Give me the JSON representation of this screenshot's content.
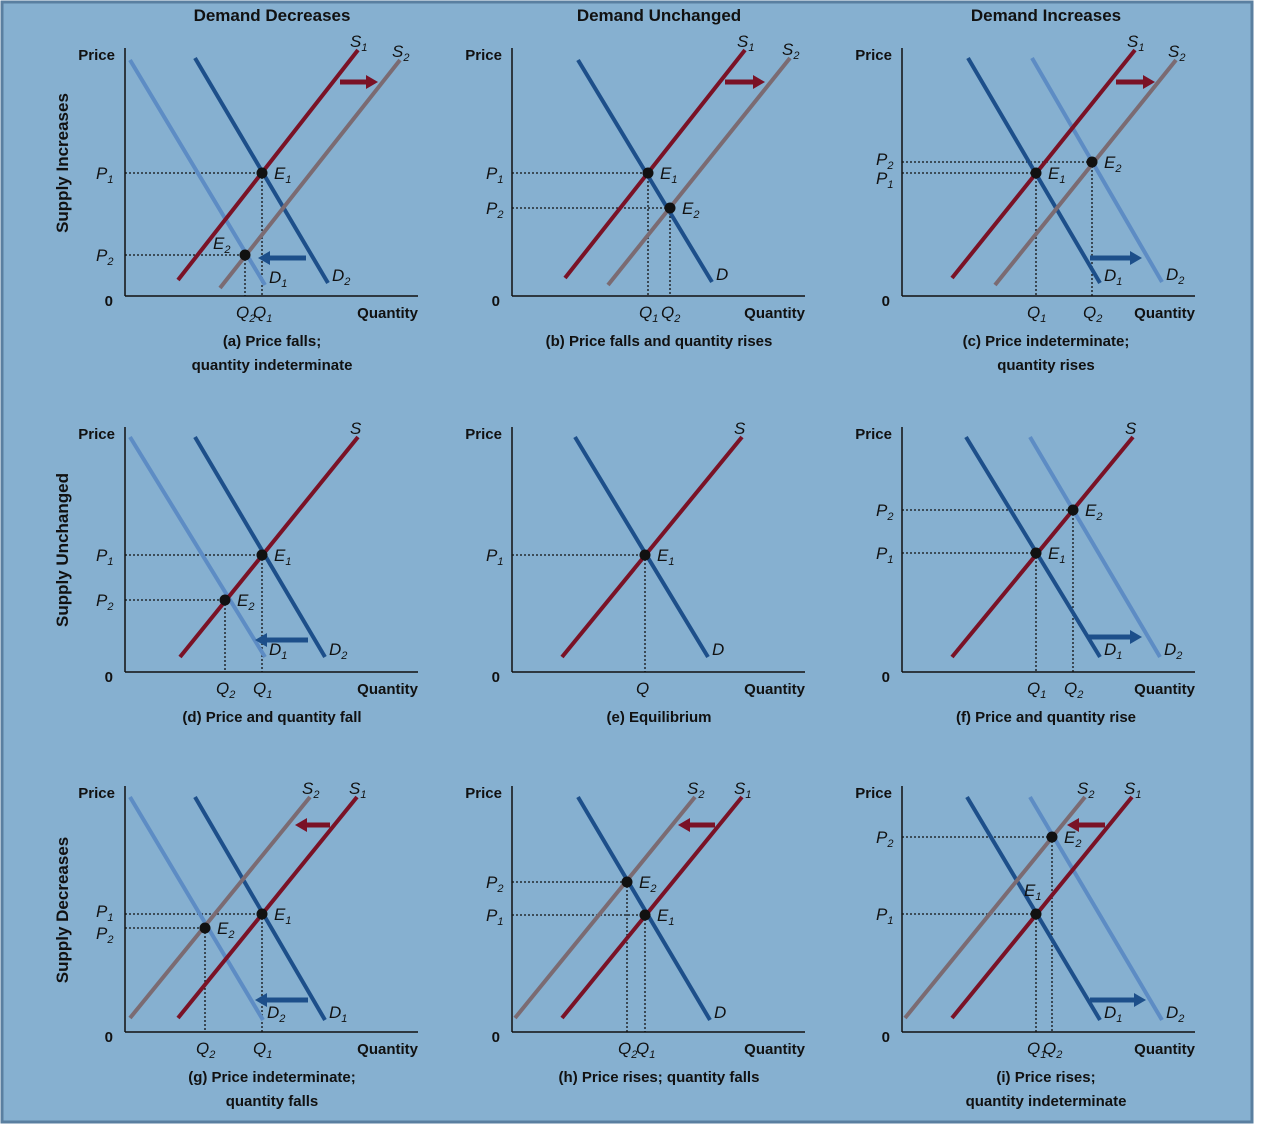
{
  "colors": {
    "background": "#86b0d0",
    "border": "#5a7fa0",
    "s1": "#7a1226",
    "s2": "#7b6b72",
    "d1": "#1d4f8a",
    "d2": "#5d8cc4",
    "arrow_supply": "#7a1226",
    "arrow_demand": "#1d4f8a"
  },
  "column_headers": [
    "Demand Decreases",
    "Demand Unchanged",
    "Demand Increases"
  ],
  "row_labels": [
    "Supply Increases",
    "Supply Unchanged",
    "Supply Decreases"
  ],
  "axis": {
    "price": "Price",
    "quantity": "Quantity",
    "origin": "0"
  },
  "panels": [
    {
      "id": "a",
      "caption": [
        "(a) Price falls;",
        "quantity indeterminate"
      ],
      "supply_labels": [
        {
          "base": "S",
          "sub": "1"
        },
        {
          "base": "S",
          "sub": "2"
        }
      ],
      "demand_labels": [
        {
          "base": "D",
          "sub": "1"
        },
        {
          "base": "D",
          "sub": "2"
        }
      ],
      "price_labels": [
        {
          "base": "P",
          "sub": "1"
        },
        {
          "base": "P",
          "sub": "2"
        }
      ],
      "quantity_labels": [
        {
          "base": "Q",
          "sub": "2"
        },
        {
          "base": "Q",
          "sub": "1"
        }
      ],
      "equilibria": [
        {
          "base": "E",
          "sub": "1"
        },
        {
          "base": "E",
          "sub": "2"
        }
      ]
    },
    {
      "id": "b",
      "caption": [
        "(b) Price falls and quantity rises"
      ],
      "supply_labels": [
        {
          "base": "S",
          "sub": "1"
        },
        {
          "base": "S",
          "sub": "2"
        }
      ],
      "demand_labels": [
        {
          "base": "D",
          "sub": ""
        }
      ],
      "price_labels": [
        {
          "base": "P",
          "sub": "1"
        },
        {
          "base": "P",
          "sub": "2"
        }
      ],
      "quantity_labels": [
        {
          "base": "Q",
          "sub": "1"
        },
        {
          "base": "Q",
          "sub": "2"
        }
      ],
      "equilibria": [
        {
          "base": "E",
          "sub": "1"
        },
        {
          "base": "E",
          "sub": "2"
        }
      ]
    },
    {
      "id": "c",
      "caption": [
        "(c) Price indeterminate;",
        "quantity rises"
      ],
      "supply_labels": [
        {
          "base": "S",
          "sub": "1"
        },
        {
          "base": "S",
          "sub": "2"
        }
      ],
      "demand_labels": [
        {
          "base": "D",
          "sub": "1"
        },
        {
          "base": "D",
          "sub": "2"
        }
      ],
      "price_labels": [
        {
          "base": "P",
          "sub": "2"
        },
        {
          "base": "P",
          "sub": "1"
        }
      ],
      "quantity_labels": [
        {
          "base": "Q",
          "sub": "1"
        },
        {
          "base": "Q",
          "sub": "2"
        }
      ],
      "equilibria": [
        {
          "base": "E",
          "sub": "1"
        },
        {
          "base": "E",
          "sub": "2"
        }
      ]
    },
    {
      "id": "d",
      "caption": [
        "(d) Price and quantity fall"
      ],
      "supply_labels": [
        {
          "base": "S",
          "sub": ""
        }
      ],
      "demand_labels": [
        {
          "base": "D",
          "sub": "1"
        },
        {
          "base": "D",
          "sub": "2"
        }
      ],
      "price_labels": [
        {
          "base": "P",
          "sub": "1"
        },
        {
          "base": "P",
          "sub": "2"
        }
      ],
      "quantity_labels": [
        {
          "base": "Q",
          "sub": "2"
        },
        {
          "base": "Q",
          "sub": "1"
        }
      ],
      "equilibria": [
        {
          "base": "E",
          "sub": "1"
        },
        {
          "base": "E",
          "sub": "2"
        }
      ]
    },
    {
      "id": "e",
      "caption": [
        "(e) Equilibrium"
      ],
      "supply_labels": [
        {
          "base": "S",
          "sub": ""
        }
      ],
      "demand_labels": [
        {
          "base": "D",
          "sub": ""
        }
      ],
      "price_labels": [
        {
          "base": "P",
          "sub": "1"
        }
      ],
      "quantity_labels": [
        {
          "base": "Q",
          "sub": ""
        }
      ],
      "equilibria": [
        {
          "base": "E",
          "sub": "1"
        }
      ]
    },
    {
      "id": "f",
      "caption": [
        "(f) Price and quantity rise"
      ],
      "supply_labels": [
        {
          "base": "S",
          "sub": ""
        }
      ],
      "demand_labels": [
        {
          "base": "D",
          "sub": "1"
        },
        {
          "base": "D",
          "sub": "2"
        }
      ],
      "price_labels": [
        {
          "base": "P",
          "sub": "2"
        },
        {
          "base": "P",
          "sub": "1"
        }
      ],
      "quantity_labels": [
        {
          "base": "Q",
          "sub": "1"
        },
        {
          "base": "Q",
          "sub": "2"
        }
      ],
      "equilibria": [
        {
          "base": "E",
          "sub": "1"
        },
        {
          "base": "E",
          "sub": "2"
        }
      ]
    },
    {
      "id": "g",
      "caption": [
        "(g) Price indeterminate;",
        "quantity falls"
      ],
      "supply_labels": [
        {
          "base": "S",
          "sub": "2"
        },
        {
          "base": "S",
          "sub": "1"
        }
      ],
      "demand_labels": [
        {
          "base": "D",
          "sub": "2"
        },
        {
          "base": "D",
          "sub": "1"
        }
      ],
      "price_labels": [
        {
          "base": "P",
          "sub": "1"
        },
        {
          "base": "P",
          "sub": "2"
        }
      ],
      "quantity_labels": [
        {
          "base": "Q",
          "sub": "2"
        },
        {
          "base": "Q",
          "sub": "1"
        }
      ],
      "equilibria": [
        {
          "base": "E",
          "sub": "1"
        },
        {
          "base": "E",
          "sub": "2"
        }
      ]
    },
    {
      "id": "h",
      "caption": [
        "(h) Price rises; quantity falls"
      ],
      "supply_labels": [
        {
          "base": "S",
          "sub": "2"
        },
        {
          "base": "S",
          "sub": "1"
        }
      ],
      "demand_labels": [
        {
          "base": "D",
          "sub": ""
        }
      ],
      "price_labels": [
        {
          "base": "P",
          "sub": "2"
        },
        {
          "base": "P",
          "sub": "1"
        }
      ],
      "quantity_labels": [
        {
          "base": "Q",
          "sub": "2"
        },
        {
          "base": "Q",
          "sub": "1"
        }
      ],
      "equilibria": [
        {
          "base": "E",
          "sub": "2"
        },
        {
          "base": "E",
          "sub": "1"
        }
      ]
    },
    {
      "id": "i",
      "caption": [
        "(i) Price rises;",
        "quantity indeterminate"
      ],
      "supply_labels": [
        {
          "base": "S",
          "sub": "2"
        },
        {
          "base": "S",
          "sub": "1"
        }
      ],
      "demand_labels": [
        {
          "base": "D",
          "sub": "1"
        },
        {
          "base": "D",
          "sub": "2"
        }
      ],
      "price_labels": [
        {
          "base": "P",
          "sub": "2"
        },
        {
          "base": "P",
          "sub": "1"
        }
      ],
      "quantity_labels": [
        {
          "base": "Q",
          "sub": "1"
        },
        {
          "base": "Q",
          "sub": "2"
        }
      ],
      "equilibria": [
        {
          "base": "E",
          "sub": "2"
        },
        {
          "base": "E",
          "sub": "1"
        }
      ]
    }
  ]
}
